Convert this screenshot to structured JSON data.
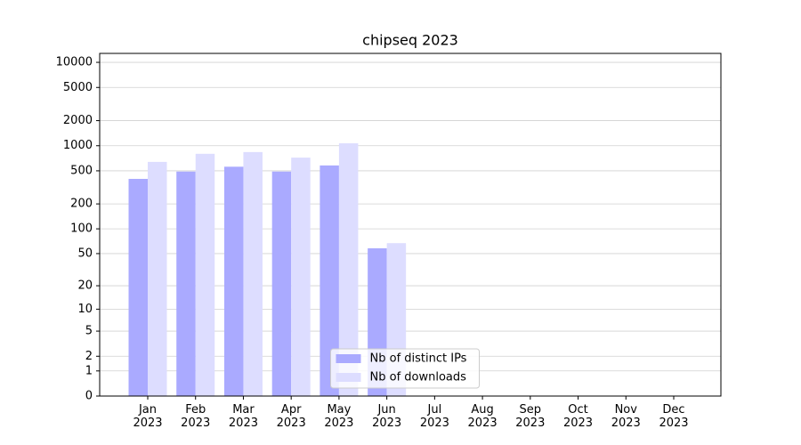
{
  "chart_data": {
    "type": "bar",
    "title": "chipseq 2023",
    "categories": [
      "Jan\n2023",
      "Feb\n2023",
      "Mar\n2023",
      "Apr\n2023",
      "May\n2023",
      "Jun\n2023",
      "Jul\n2023",
      "Aug\n2023",
      "Sep\n2023",
      "Oct\n2023",
      "Nov\n2023",
      "Dec\n2023"
    ],
    "series": [
      {
        "name": "Nb of distinct IPs",
        "color": "#aaaaff",
        "values": [
          400,
          490,
          560,
          490,
          580,
          58,
          0,
          0,
          0,
          0,
          0,
          0
        ]
      },
      {
        "name": "Nb of downloads",
        "color": "#ddddff",
        "values": [
          640,
          800,
          840,
          720,
          1070,
          67,
          0,
          0,
          0,
          0,
          0,
          0
        ]
      }
    ],
    "yscale": "log1p",
    "ylim": [
      0,
      12800
    ],
    "yticks": [
      0,
      1,
      2,
      5,
      10,
      20,
      50,
      100,
      200,
      500,
      1000,
      2000,
      5000,
      10000
    ],
    "grid": true,
    "legend": "lower center"
  }
}
